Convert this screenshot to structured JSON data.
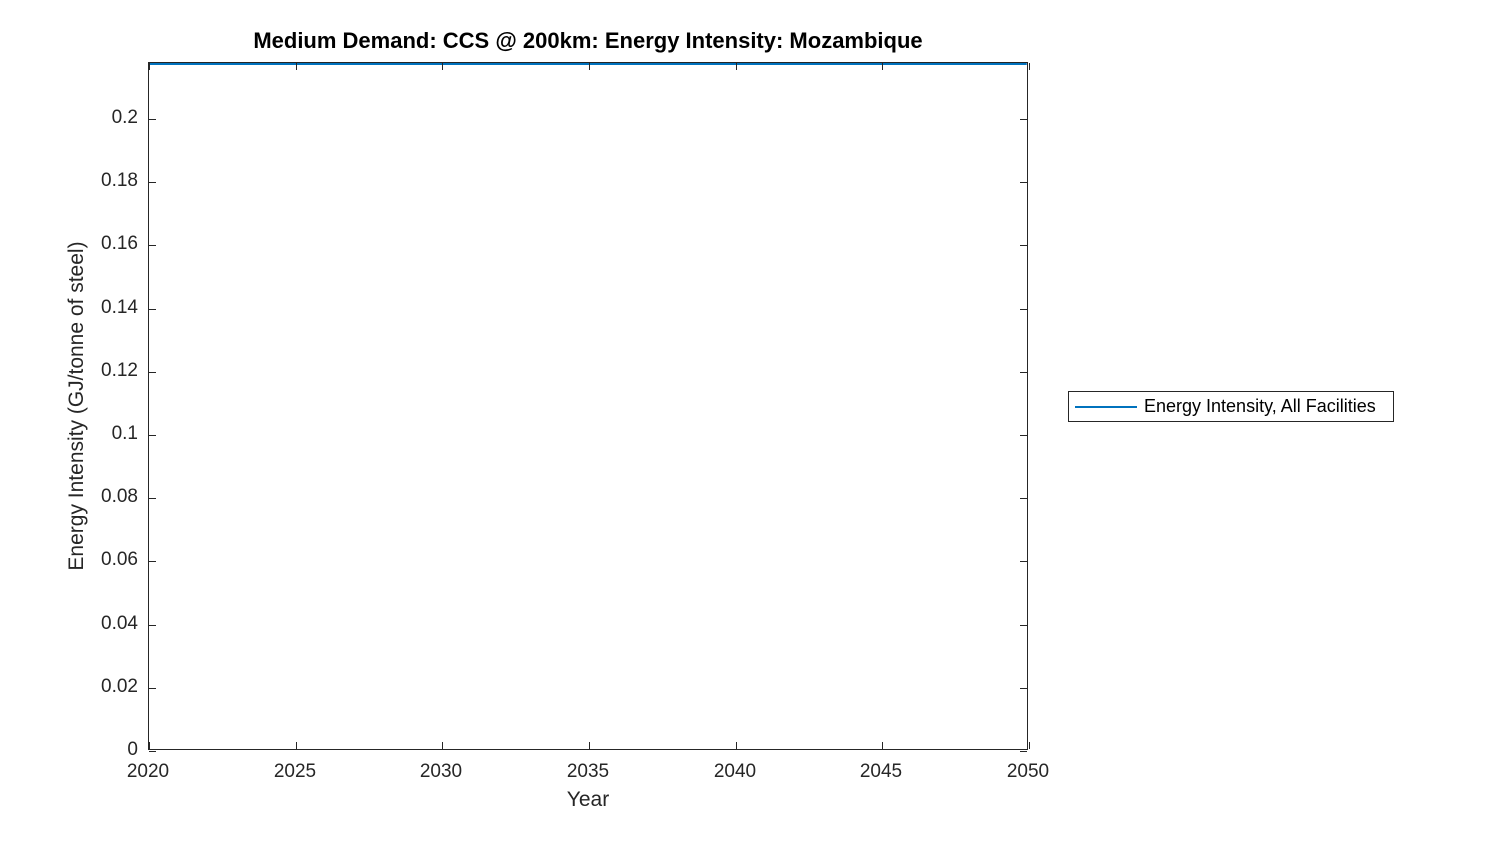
{
  "figure": {
    "title": "Medium Demand: CCS @ 200km: Energy Intensity: Mozambique",
    "x_axis": {
      "label": "Year",
      "tick_labels": [
        "2020",
        "2025",
        "2030",
        "2035",
        "2040",
        "2045",
        "2050"
      ],
      "tick_values": [
        2020,
        2025,
        2030,
        2035,
        2040,
        2045,
        2050
      ],
      "range": [
        2020,
        2050
      ]
    },
    "y_axis": {
      "label": "Energy Intensity (GJ/tonne of steel)",
      "tick_labels": [
        "0",
        "0.02",
        "0.04",
        "0.06",
        "0.08",
        "0.1",
        "0.12",
        "0.14",
        "0.16",
        "0.18",
        "0.2"
      ],
      "tick_values": [
        0,
        0.02,
        0.04,
        0.06,
        0.08,
        0.1,
        0.12,
        0.14,
        0.16,
        0.18,
        0.2
      ],
      "range": [
        0,
        0.2177
      ]
    },
    "legend": {
      "entries": [
        {
          "label": "Energy Intensity, All Facilities",
          "color": "#0072BD"
        }
      ]
    },
    "colors": {
      "line": "#0072BD",
      "axis": "#262626",
      "background": "#ffffff"
    }
  },
  "chart_data": {
    "type": "line",
    "title": "Medium Demand: CCS @ 200km: Energy Intensity: Mozambique",
    "xlabel": "Year",
    "ylabel": "Energy Intensity (GJ/tonne of steel)",
    "xlim": [
      2020,
      2050
    ],
    "ylim": [
      0,
      0.2177
    ],
    "grid": false,
    "legend_position": "outside-right",
    "series": [
      {
        "name": "Energy Intensity, All Facilities",
        "color": "#0072BD",
        "x": [
          2020,
          2025,
          2030,
          2035,
          2040,
          2045,
          2050
        ],
        "y": [
          0.2177,
          0.2177,
          0.2177,
          0.2177,
          0.2177,
          0.2177,
          0.2177
        ]
      }
    ]
  }
}
